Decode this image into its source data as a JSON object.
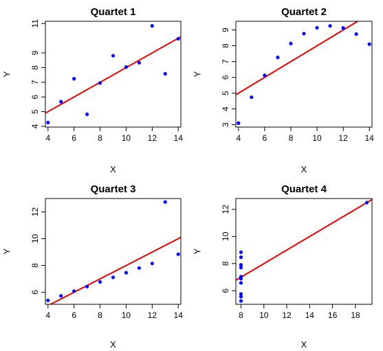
{
  "colors": {
    "points": "#0000ff",
    "fit_line": "#ee0000",
    "axis": "#000000",
    "background": "#ffffff"
  },
  "chart_data": [
    {
      "type": "scatter",
      "title": "Quartet 1",
      "xlabel": "X",
      "ylabel": "Y",
      "x": [
        10,
        8,
        13,
        9,
        11,
        14,
        6,
        4,
        12,
        7,
        5
      ],
      "y": [
        8.04,
        6.95,
        7.58,
        8.81,
        8.33,
        9.96,
        7.24,
        4.26,
        10.84,
        4.82,
        5.68
      ],
      "xlim": [
        3.8,
        14.2
      ],
      "ylim": [
        3.95,
        11.15
      ],
      "xticks": [
        4,
        6,
        8,
        10,
        12,
        14
      ],
      "yticks": [
        4,
        5,
        6,
        7,
        8,
        9,
        11
      ],
      "fit": {
        "intercept": 3.0,
        "slope": 0.5
      },
      "grid": false
    },
    {
      "type": "scatter",
      "title": "Quartet 2",
      "xlabel": "X",
      "ylabel": "Y",
      "x": [
        10,
        8,
        13,
        9,
        11,
        14,
        6,
        4,
        12,
        7,
        5
      ],
      "y": [
        9.14,
        8.14,
        8.74,
        8.77,
        9.26,
        8.1,
        6.13,
        3.1,
        9.13,
        7.26,
        4.74
      ],
      "xlim": [
        3.8,
        14.2
      ],
      "ylim": [
        2.85,
        9.55
      ],
      "xticks": [
        4,
        6,
        8,
        10,
        12,
        14
      ],
      "yticks": [
        3,
        4,
        5,
        6,
        7,
        8,
        9
      ],
      "fit": {
        "intercept": 3.0,
        "slope": 0.5
      },
      "grid": false
    },
    {
      "type": "scatter",
      "title": "Quartet 3",
      "xlabel": "X",
      "ylabel": "Y",
      "x": [
        10,
        8,
        13,
        9,
        11,
        14,
        6,
        4,
        12,
        7,
        5
      ],
      "y": [
        7.46,
        6.77,
        12.74,
        7.11,
        7.81,
        8.84,
        6.08,
        5.39,
        8.15,
        6.42,
        5.73
      ],
      "xlim": [
        3.8,
        14.2
      ],
      "ylim": [
        5.1,
        13.0
      ],
      "xticks": [
        4,
        6,
        8,
        10,
        12,
        14
      ],
      "yticks": [
        6,
        8,
        10,
        12
      ],
      "fit": {
        "intercept": 3.0,
        "slope": 0.5
      },
      "grid": false
    },
    {
      "type": "scatter",
      "title": "Quartet 4",
      "xlabel": "X",
      "ylabel": "Y",
      "x": [
        8,
        8,
        8,
        8,
        8,
        8,
        8,
        19,
        8,
        8,
        8
      ],
      "y": [
        6.58,
        5.76,
        7.71,
        8.84,
        8.47,
        7.04,
        5.25,
        12.5,
        5.56,
        7.91,
        6.89
      ],
      "xlim": [
        7.55,
        19.45
      ],
      "ylim": [
        5.0,
        12.8
      ],
      "xticks": [
        8,
        10,
        12,
        14,
        16,
        18
      ],
      "yticks": [
        6,
        8,
        10,
        12
      ],
      "fit": {
        "intercept": 3.0,
        "slope": 0.5
      },
      "grid": false
    }
  ]
}
